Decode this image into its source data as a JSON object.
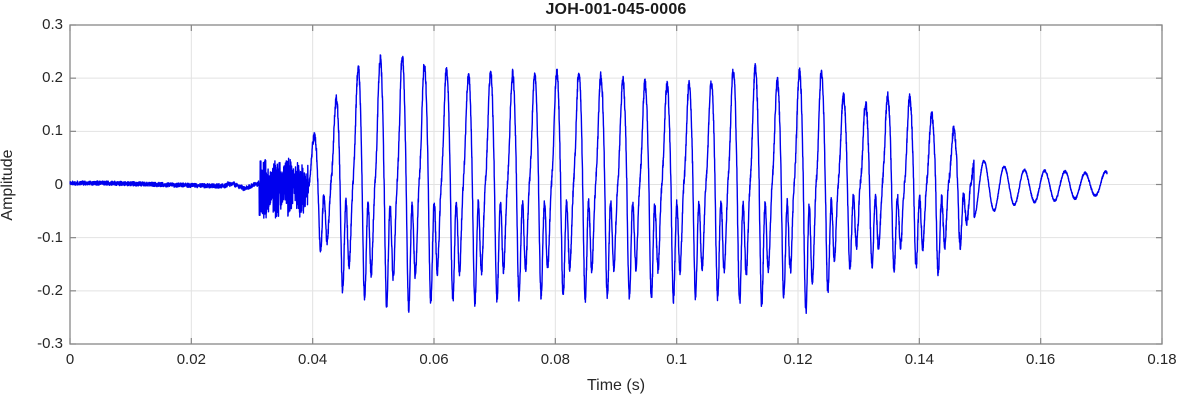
{
  "figure": {
    "title": "JOH-001-045-0006",
    "xlabel": "Time (s)",
    "ylabel": "Amplitude"
  },
  "chart_data": {
    "type": "line",
    "title": "JOH-001-045-0006",
    "xlabel": "Time (s)",
    "ylabel": "Amplitude",
    "xlim": [
      0,
      0.18
    ],
    "ylim": [
      -0.3,
      0.3
    ],
    "grid": true,
    "legend": "none",
    "box": true,
    "xticks": [
      {
        "v": 0.0,
        "label": "0"
      },
      {
        "v": 0.02,
        "label": "0.02"
      },
      {
        "v": 0.04,
        "label": "0.04"
      },
      {
        "v": 0.06,
        "label": "0.06"
      },
      {
        "v": 0.08,
        "label": "0.08"
      },
      {
        "v": 0.1,
        "label": "0.1"
      },
      {
        "v": 0.12,
        "label": "0.12"
      },
      {
        "v": 0.14,
        "label": "0.14"
      },
      {
        "v": 0.16,
        "label": "0.16"
      },
      {
        "v": 0.18,
        "label": "0.18"
      }
    ],
    "yticks": [
      {
        "v": 0.3,
        "label": "0.3"
      },
      {
        "v": 0.2,
        "label": "0.2"
      },
      {
        "v": 0.1,
        "label": "0.1"
      },
      {
        "v": 0.0,
        "label": "0"
      },
      {
        "v": -0.1,
        "label": "-0.1"
      },
      {
        "v": -0.2,
        "label": "-0.2"
      },
      {
        "v": -0.3,
        "label": "-0.3"
      }
    ],
    "line_color": "#0000EE",
    "axis_color": "#878787",
    "grid_color": "#E2E2E2",
    "tick_label_color": "#262626",
    "signal": {
      "kind": "speech-audio-waveform",
      "start_s": 0.0,
      "end_s": 0.171,
      "fundamental_hz": 275,
      "tail_hz": 300,
      "regions": [
        {
          "type": "silence-noise",
          "t0": 0.0,
          "t1": 0.0312,
          "amp": 0.005
        },
        {
          "type": "noise-burst",
          "t0": 0.0312,
          "t1": 0.0392,
          "amp_pos": 0.05,
          "amp_neg": 0.065
        },
        {
          "type": "voiced",
          "t0": 0.0392,
          "t1": 0.149
        },
        {
          "type": "decay-tail",
          "t0": 0.149,
          "t1": 0.171
        }
      ],
      "envelope_pos": [
        [
          0.0392,
          0.08
        ],
        [
          0.041,
          0.1
        ],
        [
          0.043,
          0.14
        ],
        [
          0.045,
          0.19
        ],
        [
          0.047,
          0.215
        ],
        [
          0.05,
          0.235
        ],
        [
          0.055,
          0.24
        ],
        [
          0.058,
          0.225
        ],
        [
          0.062,
          0.215
        ],
        [
          0.066,
          0.205
        ],
        [
          0.07,
          0.21
        ],
        [
          0.075,
          0.205
        ],
        [
          0.08,
          0.21
        ],
        [
          0.085,
          0.21
        ],
        [
          0.09,
          0.195
        ],
        [
          0.095,
          0.19
        ],
        [
          0.1,
          0.185
        ],
        [
          0.105,
          0.19
        ],
        [
          0.11,
          0.215
        ],
        [
          0.113,
          0.22
        ],
        [
          0.117,
          0.19
        ],
        [
          0.12,
          0.21
        ],
        [
          0.122,
          0.24
        ],
        [
          0.125,
          0.19
        ],
        [
          0.128,
          0.16
        ],
        [
          0.131,
          0.15
        ],
        [
          0.134,
          0.165
        ],
        [
          0.137,
          0.17
        ],
        [
          0.14,
          0.155
        ],
        [
          0.143,
          0.12
        ],
        [
          0.146,
          0.1
        ],
        [
          0.149,
          0.065
        ]
      ],
      "envelope_neg": [
        [
          0.0392,
          0.1
        ],
        [
          0.041,
          0.14
        ],
        [
          0.043,
          0.19
        ],
        [
          0.045,
          0.24
        ],
        [
          0.047,
          0.25
        ],
        [
          0.05,
          0.27
        ],
        [
          0.055,
          0.285
        ],
        [
          0.058,
          0.27
        ],
        [
          0.062,
          0.26
        ],
        [
          0.066,
          0.27
        ],
        [
          0.07,
          0.26
        ],
        [
          0.075,
          0.255
        ],
        [
          0.08,
          0.25
        ],
        [
          0.085,
          0.26
        ],
        [
          0.09,
          0.25
        ],
        [
          0.095,
          0.255
        ],
        [
          0.1,
          0.26
        ],
        [
          0.105,
          0.25
        ],
        [
          0.11,
          0.265
        ],
        [
          0.113,
          0.28
        ],
        [
          0.117,
          0.25
        ],
        [
          0.12,
          0.27
        ],
        [
          0.122,
          0.3
        ],
        [
          0.125,
          0.24
        ],
        [
          0.128,
          0.19
        ],
        [
          0.131,
          0.18
        ],
        [
          0.134,
          0.2
        ],
        [
          0.137,
          0.185
        ],
        [
          0.14,
          0.185
        ],
        [
          0.143,
          0.205
        ],
        [
          0.146,
          0.155
        ],
        [
          0.149,
          0.09
        ]
      ],
      "tail_envelope": [
        [
          0.149,
          0.055
        ],
        [
          0.152,
          0.045
        ],
        [
          0.155,
          0.035
        ],
        [
          0.158,
          0.03
        ],
        [
          0.162,
          0.028
        ],
        [
          0.166,
          0.025
        ],
        [
          0.169,
          0.02
        ],
        [
          0.171,
          0.025
        ]
      ]
    }
  }
}
